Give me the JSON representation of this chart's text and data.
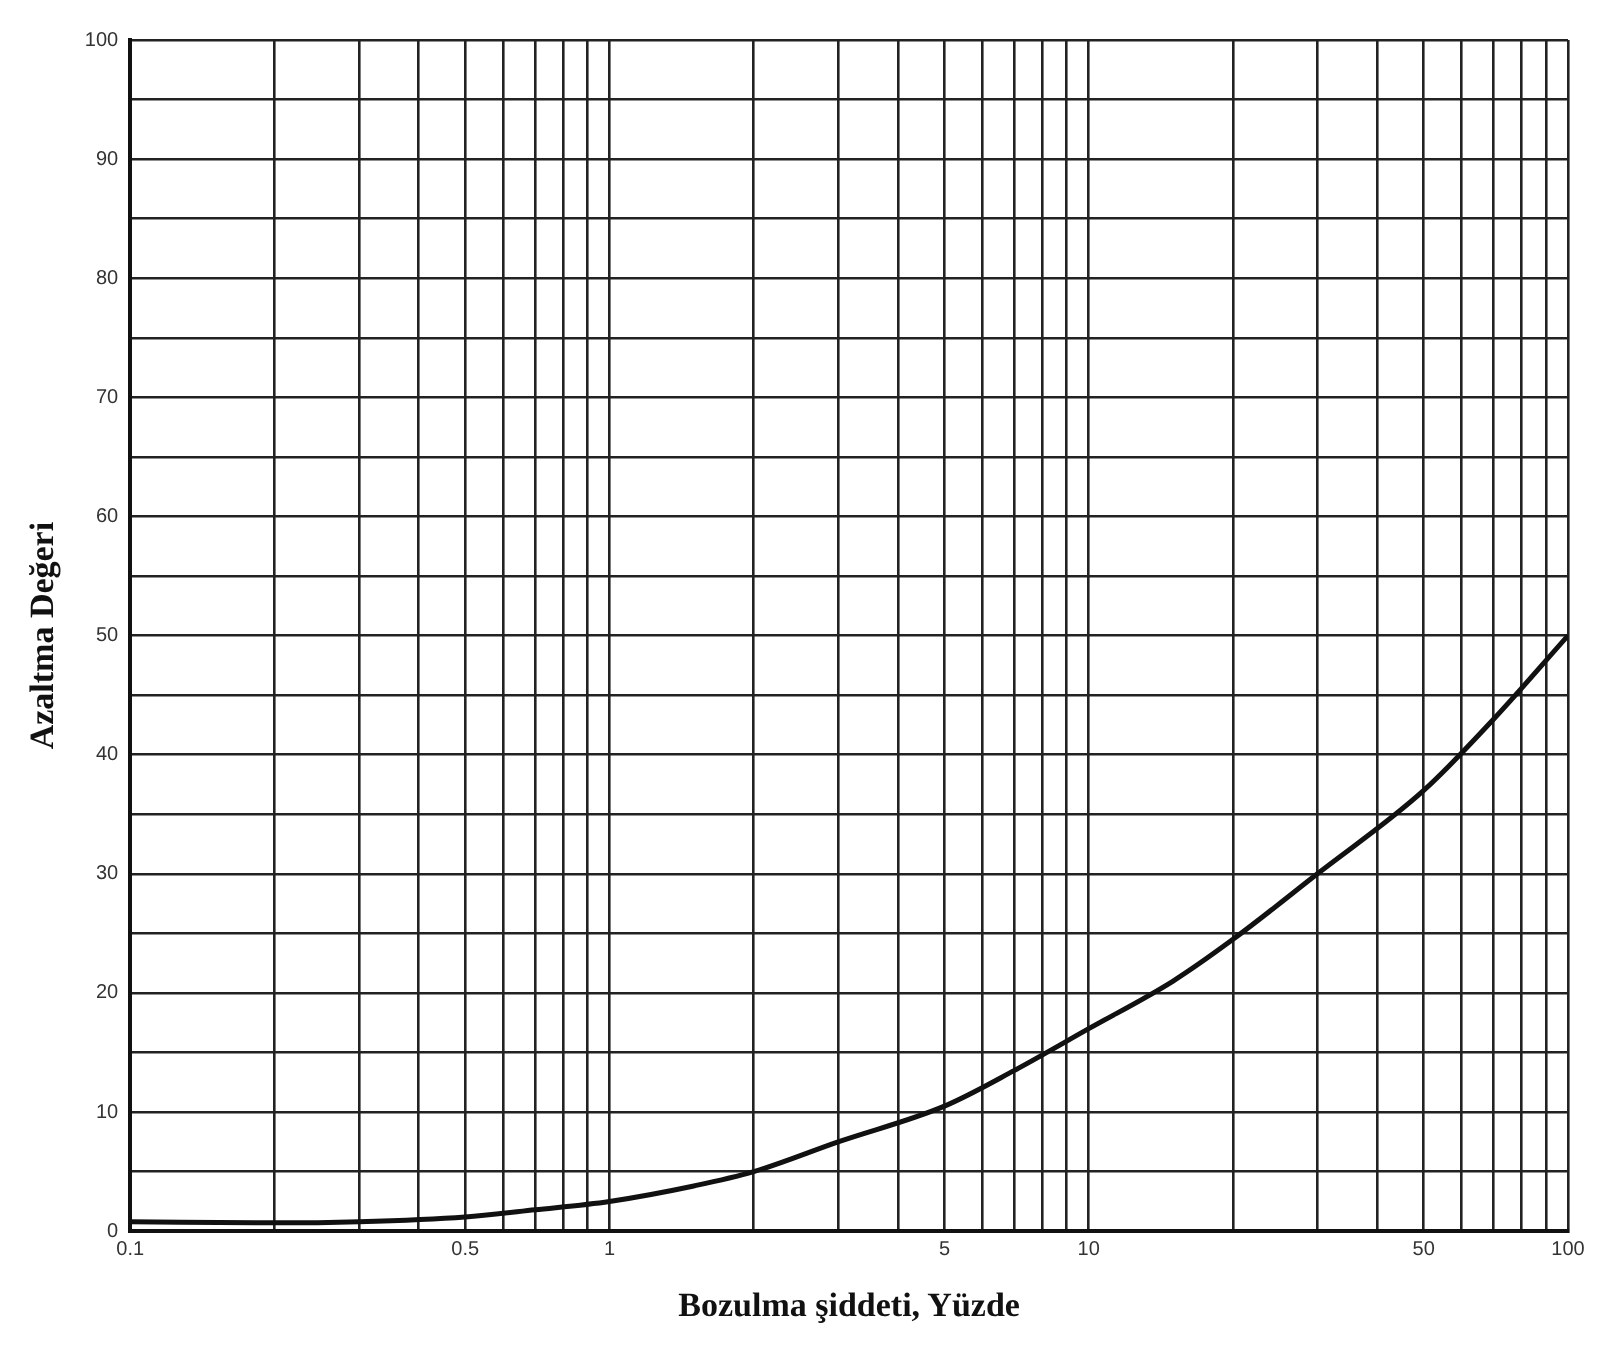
{
  "chart_data": {
    "type": "line",
    "xlabel": "Bozulma şiddeti, Yüzde",
    "ylabel": "Azaltma Değeri",
    "log": "x",
    "grid": true,
    "legend": false,
    "marker": "none",
    "line_style": "solid",
    "xlim": [
      0.1,
      100
    ],
    "xticks": [
      0.1,
      {
        "value": 0.2,
        "label": null
      },
      {
        "value": 0.3,
        "label": null
      },
      {
        "value": 0.4,
        "label": null
      },
      0.5,
      {
        "value": 0.6,
        "label": null
      },
      {
        "value": 0.7,
        "label": null
      },
      {
        "value": 0.8,
        "label": null
      },
      {
        "value": 0.9,
        "label": null
      },
      1,
      {
        "value": 2,
        "label": null
      },
      {
        "value": 3,
        "label": null
      },
      {
        "value": 4,
        "label": null
      },
      5,
      {
        "value": 6,
        "label": null
      },
      {
        "value": 7,
        "label": null
      },
      {
        "value": 8,
        "label": null
      },
      {
        "value": 9,
        "label": null
      },
      10,
      {
        "value": 20,
        "label": null
      },
      {
        "value": 30,
        "label": null
      },
      {
        "value": 40,
        "label": null
      },
      50,
      {
        "value": 60,
        "label": null
      },
      {
        "value": 70,
        "label": null
      },
      {
        "value": 80,
        "label": null
      },
      {
        "value": 90,
        "label": null
      },
      100
    ],
    "ylim": [
      0,
      100
    ],
    "yticks": [
      0,
      {
        "value": 5,
        "label": null
      },
      10,
      {
        "value": 15,
        "label": null
      },
      20,
      {
        "value": 25,
        "label": null
      },
      30,
      {
        "value": 35,
        "label": null
      },
      40,
      {
        "value": 45,
        "label": null
      },
      50,
      {
        "value": 55,
        "label": null
      },
      60,
      {
        "value": 65,
        "label": null
      },
      70,
      {
        "value": 75,
        "label": null
      },
      80,
      {
        "value": 85,
        "label": null
      },
      90,
      {
        "value": 95,
        "label": null
      },
      100
    ],
    "series": [
      {
        "color": "#111111",
        "x": [
          0.1,
          0.2,
          0.3,
          0.5,
          0.7,
          1,
          1.5,
          2,
          3,
          5,
          7,
          10,
          15,
          20,
          30,
          50,
          70,
          100
        ],
        "values": [
          0.8,
          0.7,
          0.8,
          1.2,
          1.8,
          2.5,
          3.8,
          5,
          7.5,
          10.5,
          13.5,
          17,
          21,
          24.5,
          30,
          37,
          43,
          50
        ]
      }
    ]
  }
}
